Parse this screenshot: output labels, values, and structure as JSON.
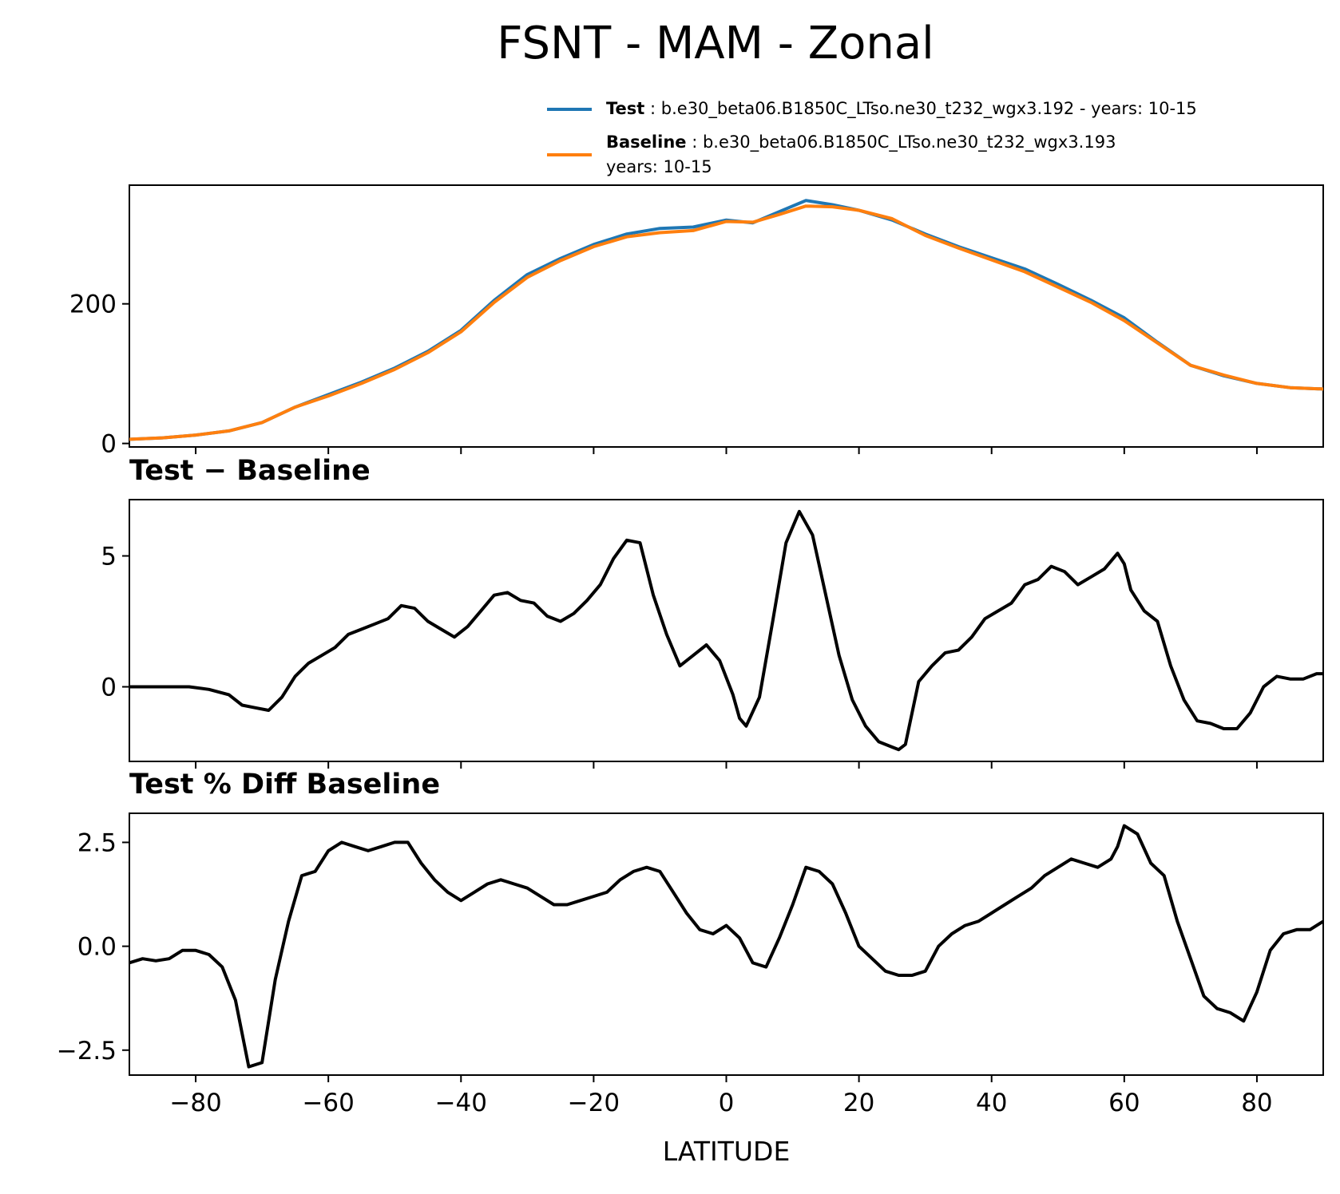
{
  "figure": {
    "title": "FSNT - MAM - Zonal"
  },
  "legend": {
    "location": "upper-right",
    "entries": [
      {
        "label": "Test",
        "desc": "b.e30_beta06.B1850C_LTso.ne30_t232_wgx3.192 - years: 10-15",
        "desc2": "",
        "color": "#1f77b4"
      },
      {
        "label": "Baseline",
        "desc": "b.e30_beta06.B1850C_LTso.ne30_t232_wgx3.193",
        "desc2": "years: 10-15",
        "color": "#ff7f0e"
      }
    ]
  },
  "chart_data": [
    {
      "type": "line",
      "panel": "fsnt",
      "title": "",
      "xlabel": "",
      "ylabel": "",
      "xlim": [
        -90,
        90
      ],
      "ylim": [
        -5,
        370
      ],
      "yticks": [
        0,
        200
      ],
      "ytick_labels": [
        "0",
        "200"
      ],
      "x": [
        -90,
        -85,
        -80,
        -75,
        -70,
        -65,
        -60,
        -55,
        -50,
        -45,
        -40,
        -35,
        -30,
        -25,
        -20,
        -15,
        -10,
        -5,
        0,
        4,
        8,
        12,
        16,
        20,
        25,
        30,
        35,
        40,
        45,
        50,
        55,
        60,
        65,
        70,
        75,
        80,
        85,
        90
      ],
      "series": [
        {
          "name": "Test",
          "color": "#1f77b4",
          "values": [
            6,
            8,
            12,
            18,
            30,
            52,
            70,
            88,
            108,
            132,
            162,
            205,
            242,
            265,
            285,
            300,
            308,
            310,
            320,
            316,
            332,
            348,
            342,
            334,
            320,
            300,
            282,
            266,
            250,
            228,
            205,
            180,
            145,
            112,
            97,
            86,
            80,
            78
          ]
        },
        {
          "name": "Baseline",
          "color": "#ff7f0e",
          "values": [
            6,
            8,
            12,
            18,
            30,
            52,
            68,
            86,
            106,
            130,
            160,
            202,
            238,
            262,
            282,
            296,
            302,
            305,
            318,
            317,
            328,
            340,
            339,
            334,
            322,
            298,
            280,
            263,
            246,
            224,
            202,
            176,
            144,
            112,
            98,
            86,
            80,
            78
          ]
        }
      ]
    },
    {
      "type": "line",
      "panel": "diff",
      "title": "Test − Baseline",
      "xlabel": "",
      "ylabel": "",
      "xlim": [
        -90,
        90
      ],
      "ylim": [
        -2.85,
        7.15
      ],
      "yticks": [
        0,
        5
      ],
      "ytick_labels": [
        "0",
        "5"
      ],
      "x": [
        -90,
        -87,
        -84,
        -81,
        -78,
        -75,
        -73,
        -71,
        -69,
        -67,
        -65,
        -63,
        -61,
        -59,
        -57,
        -55,
        -53,
        -51,
        -49,
        -47,
        -45,
        -43,
        -41,
        -39,
        -37,
        -35,
        -33,
        -31,
        -29,
        -27,
        -25,
        -23,
        -21,
        -19,
        -17,
        -15,
        -13,
        -11,
        -9,
        -7,
        -5,
        -3,
        -1,
        1,
        2,
        3,
        5,
        7,
        9,
        11,
        13,
        15,
        17,
        19,
        21,
        23,
        25,
        26,
        27,
        29,
        31,
        33,
        35,
        37,
        39,
        41,
        43,
        45,
        47,
        49,
        51,
        53,
        55,
        57,
        59,
        60,
        61,
        63,
        65,
        67,
        69,
        71,
        73,
        75,
        77,
        79,
        81,
        83,
        85,
        87,
        89,
        90
      ],
      "series": [
        {
          "name": "Test − Baseline",
          "color": "#000000",
          "values": [
            0.0,
            0.0,
            0.0,
            0.0,
            -0.1,
            -0.3,
            -0.7,
            -0.8,
            -0.9,
            -0.4,
            0.4,
            0.9,
            1.2,
            1.5,
            2.0,
            2.2,
            2.4,
            2.6,
            3.1,
            3.0,
            2.5,
            2.2,
            1.9,
            2.3,
            2.9,
            3.5,
            3.6,
            3.3,
            3.2,
            2.7,
            2.5,
            2.8,
            3.3,
            3.9,
            4.9,
            5.6,
            5.5,
            3.5,
            2.0,
            0.8,
            1.2,
            1.6,
            1.0,
            -0.3,
            -1.2,
            -1.5,
            -0.4,
            2.5,
            5.5,
            6.7,
            5.8,
            3.5,
            1.2,
            -0.5,
            -1.5,
            -2.1,
            -2.3,
            -2.4,
            -2.2,
            0.2,
            0.8,
            1.3,
            1.4,
            1.9,
            2.6,
            2.9,
            3.2,
            3.9,
            4.1,
            4.6,
            4.4,
            3.9,
            4.2,
            4.5,
            5.1,
            4.7,
            3.7,
            2.9,
            2.5,
            0.8,
            -0.5,
            -1.3,
            -1.4,
            -1.6,
            -1.6,
            -1.0,
            0.0,
            0.4,
            0.3,
            0.3,
            0.5,
            0.5
          ]
        }
      ]
    },
    {
      "type": "line",
      "panel": "pct_diff",
      "title": "Test % Diff Baseline",
      "xlabel": "LATITUDE",
      "ylabel": "",
      "xlim": [
        -90,
        90
      ],
      "ylim": [
        -3.1,
        3.2
      ],
      "yticks": [
        -2.5,
        0.0,
        2.5
      ],
      "ytick_labels": [
        "−2.5",
        "0.0",
        "2.5"
      ],
      "xticks": [
        -80,
        -60,
        -40,
        -20,
        0,
        20,
        40,
        60,
        80
      ],
      "xtick_labels": [
        "−80",
        "−60",
        "−40",
        "−20",
        "0",
        "20",
        "40",
        "60",
        "80"
      ],
      "x": [
        -90,
        -88,
        -86,
        -84,
        -82,
        -80,
        -78,
        -76,
        -74,
        -72,
        -70,
        -68,
        -66,
        -64,
        -62,
        -60,
        -58,
        -56,
        -54,
        -52,
        -50,
        -48,
        -46,
        -44,
        -42,
        -40,
        -38,
        -36,
        -34,
        -32,
        -30,
        -28,
        -26,
        -24,
        -22,
        -20,
        -18,
        -16,
        -14,
        -12,
        -10,
        -8,
        -6,
        -4,
        -2,
        0,
        2,
        4,
        6,
        8,
        10,
        12,
        14,
        16,
        18,
        20,
        22,
        24,
        26,
        28,
        30,
        32,
        34,
        36,
        38,
        40,
        42,
        44,
        46,
        48,
        50,
        52,
        54,
        56,
        58,
        59,
        60,
        62,
        64,
        66,
        68,
        70,
        72,
        74,
        76,
        78,
        80,
        82,
        84,
        86,
        88,
        90
      ],
      "series": [
        {
          "name": "Test % Diff Baseline",
          "color": "#000000",
          "values": [
            -0.4,
            -0.3,
            -0.35,
            -0.3,
            -0.1,
            -0.1,
            -0.2,
            -0.5,
            -1.3,
            -2.9,
            -2.8,
            -0.8,
            0.6,
            1.7,
            1.8,
            2.3,
            2.5,
            2.4,
            2.3,
            2.4,
            2.5,
            2.5,
            2.0,
            1.6,
            1.3,
            1.1,
            1.3,
            1.5,
            1.6,
            1.5,
            1.4,
            1.2,
            1.0,
            1.0,
            1.1,
            1.2,
            1.3,
            1.6,
            1.8,
            1.9,
            1.8,
            1.3,
            0.8,
            0.4,
            0.3,
            0.5,
            0.2,
            -0.4,
            -0.5,
            0.2,
            1.0,
            1.9,
            1.8,
            1.5,
            0.8,
            0.0,
            -0.3,
            -0.6,
            -0.7,
            -0.7,
            -0.6,
            0.0,
            0.3,
            0.5,
            0.6,
            0.8,
            1.0,
            1.2,
            1.4,
            1.7,
            1.9,
            2.1,
            2.0,
            1.9,
            2.1,
            2.4,
            2.9,
            2.7,
            2.0,
            1.7,
            0.6,
            -0.3,
            -1.2,
            -1.5,
            -1.6,
            -1.8,
            -1.1,
            -0.1,
            0.3,
            0.4,
            0.4,
            0.6
          ]
        }
      ]
    }
  ]
}
